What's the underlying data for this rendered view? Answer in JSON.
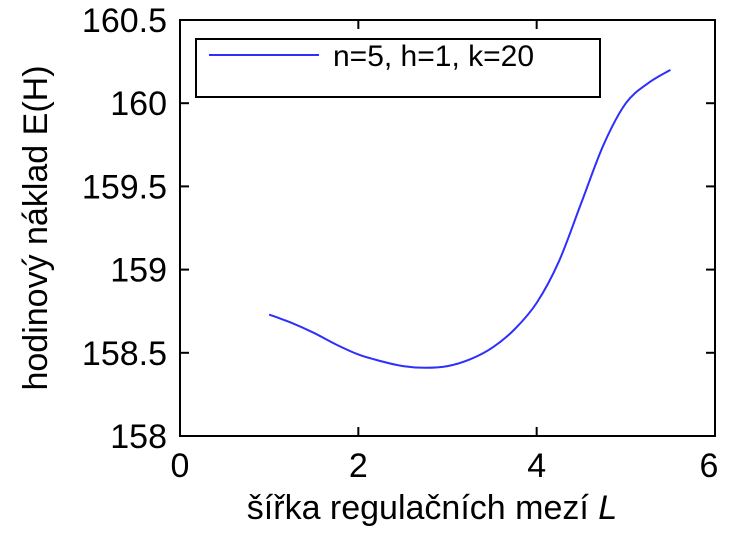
{
  "chart_data": {
    "type": "line",
    "title": "",
    "xlabel": "šířka regulačních mezí",
    "xlabel_var": "L",
    "ylabel": "hodinový náklad E(H)",
    "xlim": [
      0,
      6
    ],
    "ylim": [
      158,
      160.5
    ],
    "x_ticks": [
      {
        "value": 0,
        "label": "0"
      },
      {
        "value": 2,
        "label": "2"
      },
      {
        "value": 4,
        "label": "4"
      },
      {
        "value": 6,
        "label": "6"
      }
    ],
    "y_ticks": [
      {
        "value": 158,
        "label": "158"
      },
      {
        "value": 158.5,
        "label": "158.5"
      },
      {
        "value": 159,
        "label": "159"
      },
      {
        "value": 159.5,
        "label": "159.5"
      },
      {
        "value": 160,
        "label": "160"
      },
      {
        "value": 160.5,
        "label": "160.5"
      }
    ],
    "grid": false,
    "legend_position": "top",
    "series": [
      {
        "name": "n=5, h=1, k=20",
        "color": "#2e2eff",
        "x": [
          1.0,
          1.25,
          1.5,
          1.75,
          2.0,
          2.25,
          2.5,
          2.75,
          3.0,
          3.25,
          3.5,
          3.75,
          4.0,
          4.25,
          4.5,
          4.75,
          5.0,
          5.25,
          5.5
        ],
        "y": [
          158.73,
          158.68,
          158.62,
          158.55,
          158.49,
          158.45,
          158.42,
          158.41,
          158.42,
          158.46,
          158.53,
          158.64,
          158.8,
          159.05,
          159.4,
          159.75,
          160.0,
          160.12,
          160.2
        ]
      }
    ]
  }
}
